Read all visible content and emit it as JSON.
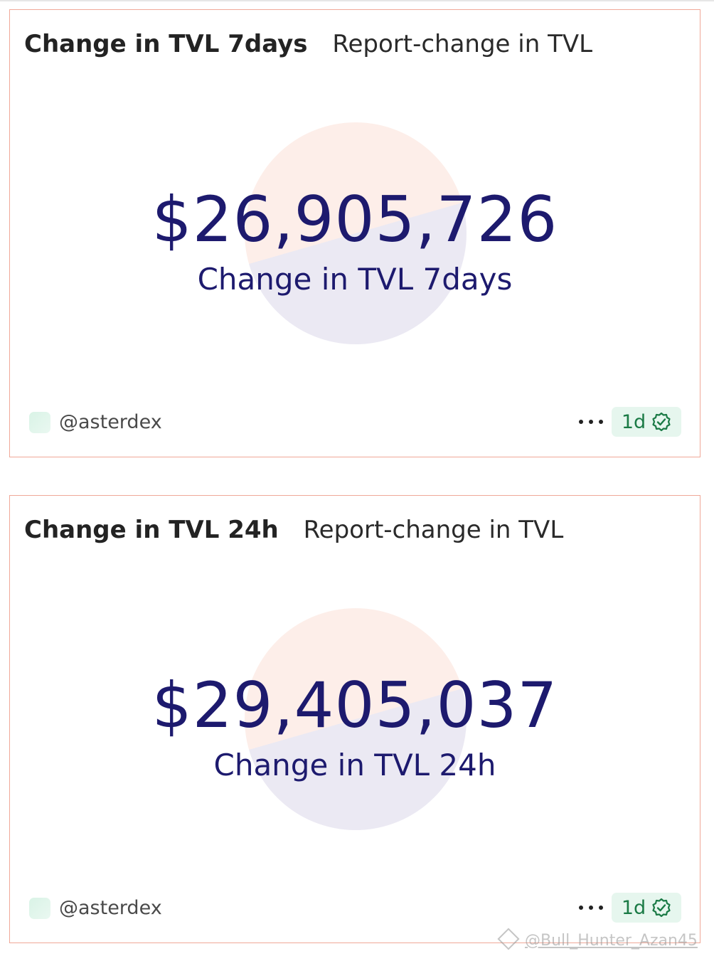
{
  "cards": [
    {
      "title": "Change in TVL 7days",
      "subtitle": "Report-change in TVL",
      "value": "$26,905,726",
      "label": "Change in TVL 7days",
      "author": "@asterdex",
      "badge": "1d"
    },
    {
      "title": "Change in TVL 24h",
      "subtitle": "Report-change in TVL",
      "value": "$29,405,037",
      "label": "Change in TVL 24h",
      "author": "@asterdex",
      "badge": "1d"
    }
  ],
  "watermark": "@Bull_Hunter_Azan45",
  "icons": {
    "more": "more-options-icon",
    "verified": "verified-check-icon",
    "watermark_logo": "binance-logo-icon"
  },
  "colors": {
    "card_border": "#f0a898",
    "value_text": "#1d1a6e",
    "badge_bg": "#e6f6ee",
    "badge_text": "#1a7a45"
  }
}
